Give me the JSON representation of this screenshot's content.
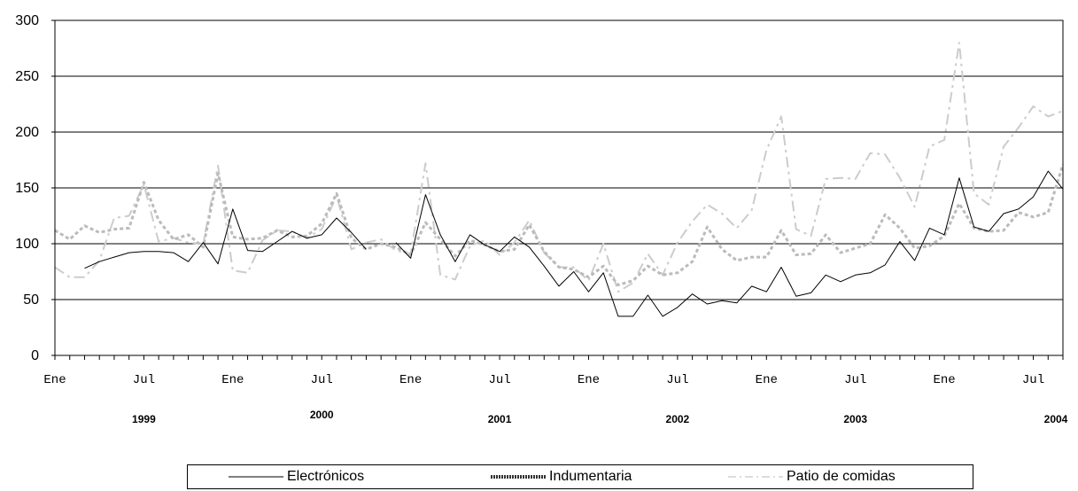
{
  "chart_data": {
    "type": "line",
    "ylim": [
      0,
      300
    ],
    "yticks": [
      "0",
      "50",
      "100",
      "150",
      "200",
      "250",
      "300"
    ],
    "grid": true,
    "month_tick_labels": [
      "Ene",
      "Jul",
      "Ene",
      "Jul",
      "Ene",
      "Jul",
      "Ene",
      "Jul",
      "Ene",
      "Jul",
      "Ene",
      "Jul"
    ],
    "year_labels": [
      "1999",
      "2000",
      "2001",
      "2002",
      "2003",
      "2004"
    ],
    "legend_position": "bottom",
    "x_start": "1999-01",
    "x_end": "2004-07",
    "series": [
      {
        "name": "Electrónicos",
        "color": "#000000",
        "style": "solid",
        "values": [
          null,
          null,
          78,
          84,
          88,
          92,
          93,
          93,
          92,
          84,
          101,
          82,
          131,
          94,
          93,
          102,
          111,
          105,
          108,
          123,
          110,
          95,
          null,
          101,
          87,
          144,
          108,
          84,
          108,
          99,
          93,
          106,
          97,
          80,
          62,
          75,
          57,
          74,
          35,
          35,
          54,
          35,
          43,
          55,
          46,
          49,
          47,
          62,
          57,
          79,
          53,
          56,
          72,
          66,
          72,
          74,
          81,
          102,
          85,
          114,
          108,
          159,
          115,
          111,
          127,
          131,
          142,
          165,
          149
        ]
      },
      {
        "name": "Indumentaria",
        "color": "#bbbbbb",
        "style": "dashed-heavy",
        "values": [
          112,
          104,
          116,
          110,
          113,
          114,
          155,
          121,
          104,
          108,
          97,
          163,
          106,
          104,
          105,
          112,
          106,
          107,
          118,
          145,
          105,
          95,
          100,
          97,
          90,
          119,
          104,
          89,
          103,
          99,
          93,
          95,
          117,
          93,
          79,
          77,
          70,
          80,
          63,
          67,
          80,
          72,
          74,
          84,
          115,
          95,
          85,
          88,
          88,
          112,
          90,
          91,
          108,
          92,
          96,
          100,
          126,
          114,
          96,
          98,
          107,
          136,
          114,
          111,
          112,
          128,
          124,
          128,
          171
        ]
      },
      {
        "name": "Patio de comidas",
        "color": "#cccccc",
        "style": "dash-dot",
        "values": [
          79,
          70,
          70,
          85,
          123,
          125,
          153,
          102,
          105,
          101,
          100,
          170,
          76,
          74,
          103,
          112,
          111,
          105,
          113,
          143,
          95,
          101,
          104,
          94,
          91,
          172,
          72,
          68,
          98,
          103,
          90,
          101,
          121,
          92,
          79,
          79,
          67,
          100,
          57,
          65,
          91,
          72,
          101,
          120,
          135,
          127,
          114,
          130,
          184,
          214,
          113,
          107,
          158,
          159,
          158,
          181,
          180,
          159,
          133,
          187,
          193,
          280,
          145,
          135,
          187,
          204,
          223,
          214,
          219
        ]
      }
    ]
  }
}
